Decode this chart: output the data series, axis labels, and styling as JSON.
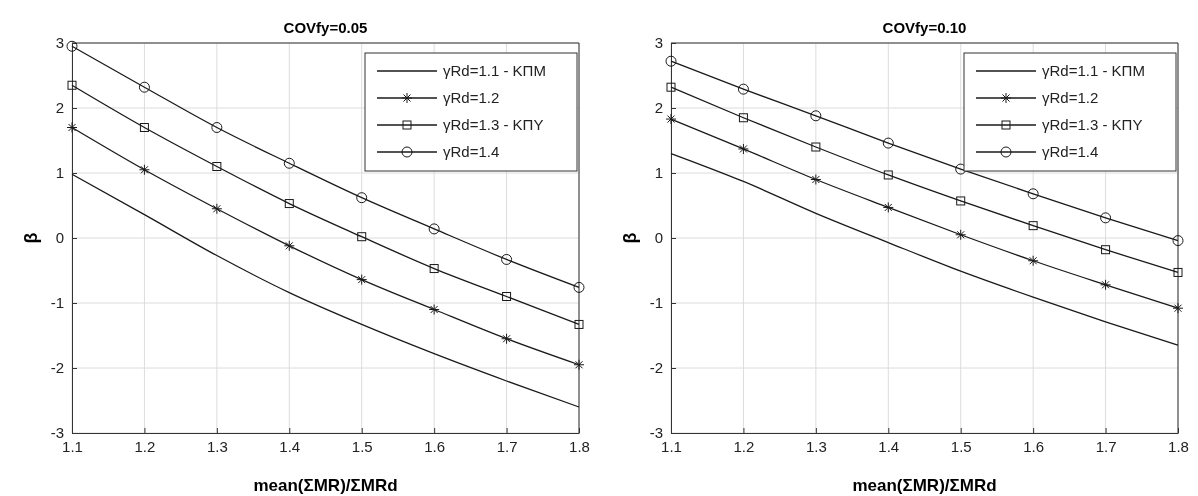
{
  "chart_data": [
    {
      "type": "line",
      "title": "COVfy=0.05",
      "xlabel": "mean(ΣMR)/ΣMRd",
      "ylabel": "β",
      "x": [
        1.1,
        1.2,
        1.3,
        1.4,
        1.5,
        1.6,
        1.7,
        1.8
      ],
      "xlim": [
        1.1,
        1.8
      ],
      "xticks": [
        1.1,
        1.2,
        1.3,
        1.4,
        1.5,
        1.6,
        1.7,
        1.8
      ],
      "ylim": [
        -3,
        3
      ],
      "yticks": [
        -3,
        -2,
        -1,
        0,
        1,
        2,
        3
      ],
      "grid": true,
      "legend": "top right",
      "series": [
        {
          "name": "γRd=1.1 - ΚΠΜ",
          "color": "#1a1a1a",
          "marker": "none",
          "values": [
            0.98,
            0.36,
            -0.27,
            -0.84,
            -1.33,
            -1.78,
            -2.2,
            -2.6
          ]
        },
        {
          "name": "γRd=1.2",
          "color": "#1a1a1a",
          "marker": "cross",
          "values": [
            1.7,
            1.05,
            0.45,
            -0.12,
            -0.64,
            -1.1,
            -1.55,
            -1.95
          ]
        },
        {
          "name": "γRd=1.3 - ΚΠΥ",
          "color": "#1a1a1a",
          "marker": "square",
          "values": [
            2.35,
            1.7,
            1.1,
            0.53,
            0.02,
            -0.47,
            -0.9,
            -1.33
          ]
        },
        {
          "name": "γRd=1.4",
          "color": "#1a1a1a",
          "marker": "circle",
          "values": [
            2.95,
            2.32,
            1.7,
            1.15,
            0.62,
            0.14,
            -0.33,
            -0.76
          ]
        }
      ]
    },
    {
      "type": "line",
      "title": "COVfy=0.10",
      "xlabel": "mean(ΣMR)/ΣMRd",
      "ylabel": "β",
      "x": [
        1.1,
        1.2,
        1.3,
        1.4,
        1.5,
        1.6,
        1.7,
        1.8
      ],
      "xlim": [
        1.1,
        1.8
      ],
      "xticks": [
        1.1,
        1.2,
        1.3,
        1.4,
        1.5,
        1.6,
        1.7,
        1.8
      ],
      "ylim": [
        -3,
        3
      ],
      "yticks": [
        -3,
        -2,
        -1,
        0,
        1,
        2,
        3
      ],
      "grid": true,
      "legend": "top right",
      "series": [
        {
          "name": "γRd=1.1 - ΚΠΜ",
          "color": "#1a1a1a",
          "marker": "none",
          "values": [
            1.3,
            0.87,
            0.38,
            -0.07,
            -0.51,
            -0.91,
            -1.29,
            -1.65
          ]
        },
        {
          "name": "γRd=1.2",
          "color": "#1a1a1a",
          "marker": "cross",
          "values": [
            1.83,
            1.37,
            0.9,
            0.47,
            0.05,
            -0.35,
            -0.72,
            -1.08
          ]
        },
        {
          "name": "γRd=1.3 - ΚΠΥ",
          "color": "#1a1a1a",
          "marker": "square",
          "values": [
            2.32,
            1.85,
            1.4,
            0.97,
            0.57,
            0.19,
            -0.18,
            -0.53
          ]
        },
        {
          "name": "γRd=1.4",
          "color": "#1a1a1a",
          "marker": "circle",
          "values": [
            2.72,
            2.29,
            1.88,
            1.46,
            1.06,
            0.68,
            0.31,
            -0.04
          ]
        }
      ]
    }
  ]
}
